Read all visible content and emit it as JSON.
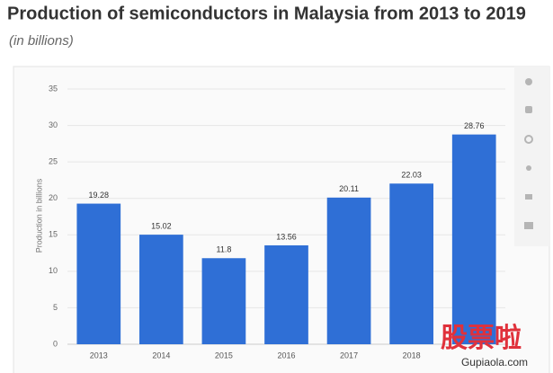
{
  "chart_data": {
    "type": "bar",
    "title": "Production of semiconductors in Malaysia from 2013 to 2019",
    "subtitle": "(in billions)",
    "y_label": "Production in billions",
    "categories": [
      "2013",
      "2014",
      "2015",
      "2016",
      "2017",
      "2018",
      null
    ],
    "values": [
      19.28,
      15.02,
      11.8,
      13.56,
      20.11,
      22.03,
      28.76
    ],
    "color": "#2f6fd6",
    "ylim": [
      0,
      35
    ],
    "yticks": [
      0,
      5,
      10,
      15,
      20,
      25,
      30,
      35
    ],
    "grid": true
  },
  "watermark": {
    "logo": "股票啦",
    "site": "Gupiaola.com"
  }
}
